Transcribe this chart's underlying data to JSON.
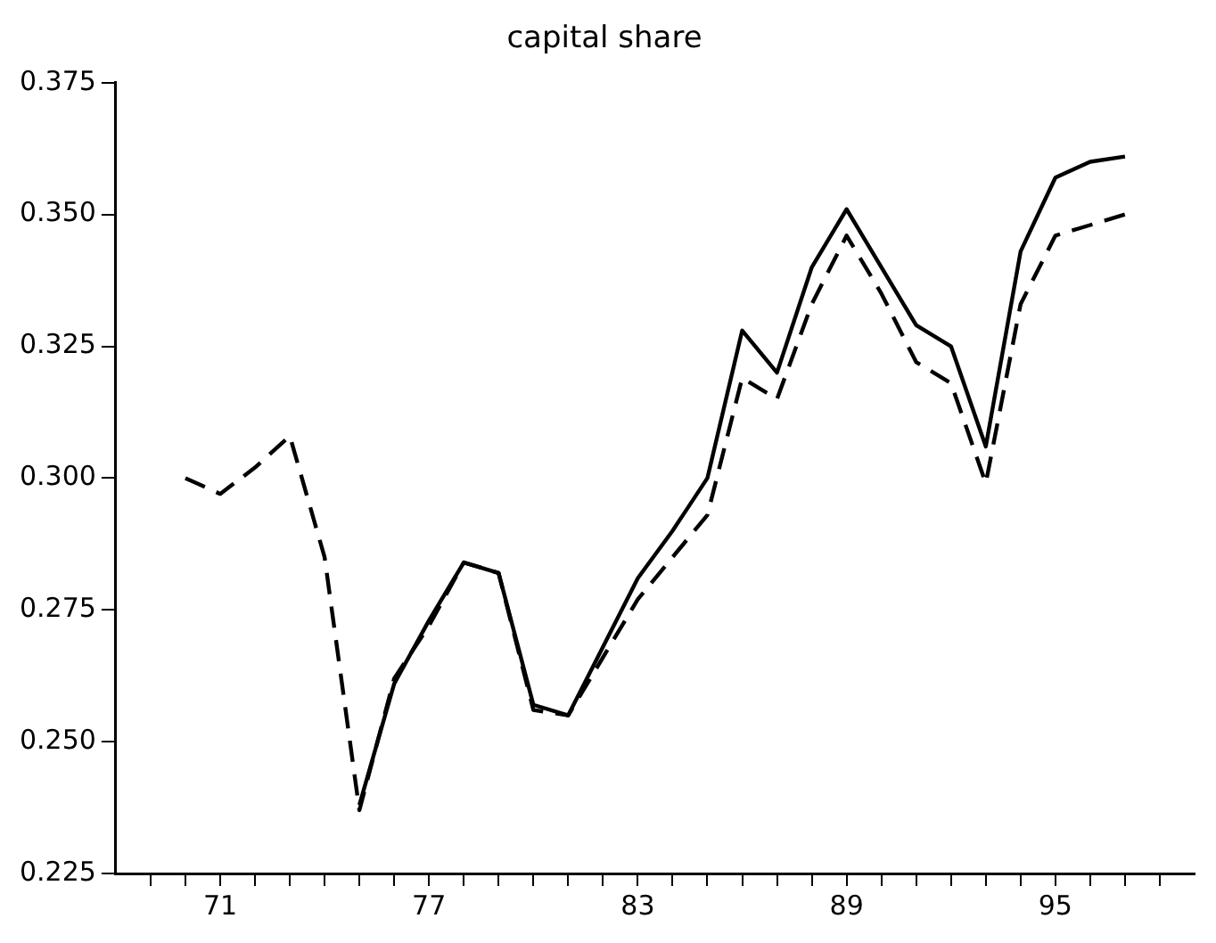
{
  "chart_data": {
    "type": "line",
    "title": "capital share",
    "x": [
      70,
      71,
      72,
      73,
      74,
      75,
      76,
      77,
      78,
      79,
      80,
      81,
      82,
      83,
      84,
      85,
      86,
      87,
      88,
      89,
      90,
      91,
      92,
      93,
      94,
      95,
      96,
      97
    ],
    "series": [
      {
        "color": "#000000",
        "line_style": "solid",
        "values": [
          null,
          null,
          null,
          null,
          null,
          0.238,
          0.261,
          0.273,
          0.284,
          0.282,
          0.257,
          0.255,
          0.268,
          0.281,
          0.29,
          0.3,
          0.328,
          0.32,
          0.34,
          0.351,
          0.34,
          0.329,
          0.325,
          0.306,
          0.343,
          0.357,
          0.36,
          0.361
        ]
      },
      {
        "color": "#000000",
        "line_style": "dashed",
        "values": [
          0.3,
          0.297,
          0.302,
          0.308,
          0.285,
          0.237,
          0.262,
          0.272,
          0.284,
          0.282,
          0.256,
          0.255,
          0.266,
          0.277,
          0.285,
          0.293,
          0.319,
          0.315,
          0.333,
          0.346,
          0.335,
          0.322,
          0.318,
          0.299,
          0.333,
          0.346,
          0.348,
          0.35
        ]
      }
    ],
    "xlim": [
      68,
      99
    ],
    "xticks": [
      {
        "value": 69,
        "label": null
      },
      {
        "value": 70,
        "label": null
      },
      71,
      {
        "value": 72,
        "label": null
      },
      {
        "value": 73,
        "label": null
      },
      {
        "value": 74,
        "label": null
      },
      {
        "value": 75,
        "label": null
      },
      {
        "value": 76,
        "label": null
      },
      77,
      {
        "value": 78,
        "label": null
      },
      {
        "value": 79,
        "label": null
      },
      {
        "value": 80,
        "label": null
      },
      {
        "value": 81,
        "label": null
      },
      {
        "value": 82,
        "label": null
      },
      83,
      {
        "value": 84,
        "label": null
      },
      {
        "value": 85,
        "label": null
      },
      {
        "value": 86,
        "label": null
      },
      {
        "value": 87,
        "label": null
      },
      {
        "value": 88,
        "label": null
      },
      89,
      {
        "value": 90,
        "label": null
      },
      {
        "value": 91,
        "label": null
      },
      {
        "value": 92,
        "label": null
      },
      {
        "value": 93,
        "label": null
      },
      {
        "value": 94,
        "label": null
      },
      95,
      {
        "value": 96,
        "label": null
      },
      {
        "value": 97,
        "label": null
      },
      {
        "value": 98,
        "label": null
      }
    ],
    "ylim": [
      0.225,
      0.375
    ],
    "yticks": [
      {
        "value": 0.225,
        "label": "0.225"
      },
      {
        "value": 0.25,
        "label": "0.250"
      },
      {
        "value": 0.275,
        "label": "0.275"
      },
      {
        "value": 0.3,
        "label": "0.300"
      },
      {
        "value": 0.325,
        "label": "0.325"
      },
      {
        "value": 0.35,
        "label": "0.350"
      },
      {
        "value": 0.375,
        "label": "0.375"
      }
    ],
    "grid": false,
    "legend": false,
    "marker": "none"
  }
}
